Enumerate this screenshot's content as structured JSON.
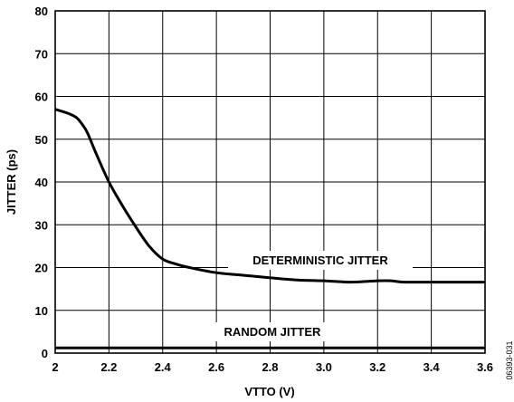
{
  "chart_data": {
    "type": "line",
    "title": "",
    "xlabel": "VTTO (V)",
    "ylabel": "JITTER (ps)",
    "xlim": [
      2.0,
      3.6
    ],
    "ylim": [
      0,
      80
    ],
    "x_ticks": [
      2.0,
      2.2,
      2.4,
      2.6,
      2.8,
      3.0,
      3.2,
      3.4,
      3.6
    ],
    "x_tick_labels": [
      "2",
      "2.2",
      "2.4",
      "2.6",
      "2.8",
      "3.0",
      "3.2",
      "3.4",
      "3.6"
    ],
    "y_ticks": [
      0,
      10,
      20,
      30,
      40,
      50,
      60,
      70,
      80
    ],
    "y_tick_labels": [
      "0",
      "10",
      "20",
      "30",
      "40",
      "50",
      "60",
      "70",
      "80"
    ],
    "grid": true,
    "legend": "none",
    "series": [
      {
        "name": "DETERMINISTIC JITTER",
        "x": [
          2.0,
          2.05,
          2.08,
          2.1,
          2.12,
          2.15,
          2.2,
          2.25,
          2.3,
          2.35,
          2.4,
          2.45,
          2.5,
          2.6,
          2.7,
          2.8,
          2.9,
          3.0,
          3.1,
          3.2,
          3.25,
          3.3,
          3.4,
          3.5,
          3.6
        ],
        "values": [
          57.0,
          56.0,
          55.0,
          53.5,
          51.5,
          47.0,
          40.0,
          34.5,
          29.5,
          25.0,
          22.0,
          20.8,
          20.0,
          18.8,
          18.2,
          17.6,
          17.1,
          16.9,
          16.6,
          16.9,
          16.9,
          16.6,
          16.6,
          16.6,
          16.6
        ],
        "color": "#000000"
      },
      {
        "name": "RANDOM JITTER",
        "x": [
          2.0,
          3.6
        ],
        "values": [
          1.2,
          1.2
        ],
        "color": "#000000"
      }
    ],
    "annotations": [
      "DETERMINISTIC JITTER",
      "RANDOM JITTER"
    ],
    "figure_id": "06393-031"
  }
}
